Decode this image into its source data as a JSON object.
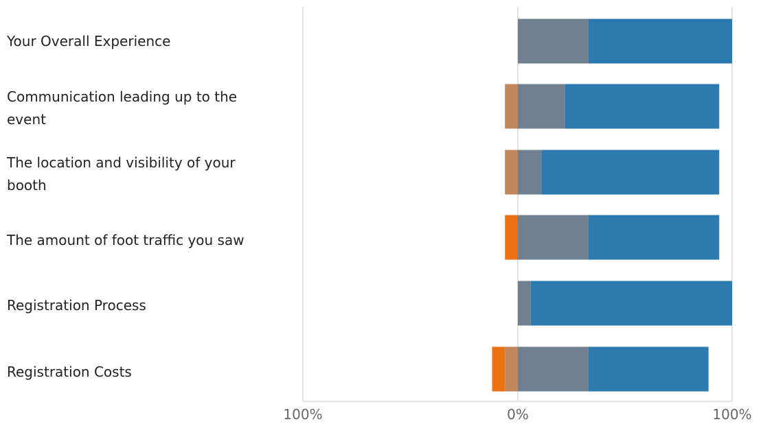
{
  "chart_data": {
    "type": "bar",
    "stacked": true,
    "diverging": true,
    "orientation": "horizontal",
    "categories": [
      "Your Overall Experience",
      "Communication leading up to the event",
      "The location and visibility of your booth",
      "The amount of foot traffic you saw",
      "Registration Process",
      "Registration Costs"
    ],
    "series": [
      {
        "values": [
          0,
          0,
          0,
          6,
          0,
          6
        ],
        "color": "#ec7014",
        "side": "negative"
      },
      {
        "values": [
          0,
          6,
          6,
          0,
          0,
          6
        ],
        "color": "#c1875c",
        "side": "negative"
      },
      {
        "values": [
          33,
          22,
          11,
          33,
          6,
          33
        ],
        "color": "#708090",
        "side": "positive"
      },
      {
        "values": [
          67,
          72,
          83,
          61,
          94,
          56
        ],
        "color": "#2b7bb1",
        "side": "positive"
      }
    ],
    "x_ticks": [
      "100%",
      "0%",
      "100%"
    ],
    "xlim": [
      -100,
      100
    ],
    "grid": true,
    "legend": "none"
  }
}
